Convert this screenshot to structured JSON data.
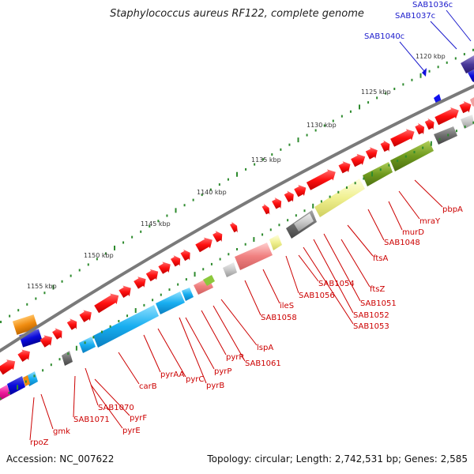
{
  "title": "Staphylococcus aureus RF122, complete genome",
  "accession": "Accession: NC_007622",
  "summary": "Topology: circular; Length: 2,742,531 bp; Genes: 2,585",
  "scale_labels": [
    "1120 kbp",
    "1125 kbp",
    "1130 kbp",
    "1135 kbp",
    "1140 kbp",
    "1145 kbp",
    "1150 kbp",
    "1155 kbp"
  ],
  "gene_labels_blue": [
    "SAB1036c",
    "SAB1037c",
    "SAB1040c"
  ],
  "gene_labels_red": [
    "pbpA",
    "mraY",
    "murD",
    "SAB1048",
    "ftsA",
    "ftsZ",
    "SAB1051",
    "SAB1052",
    "SAB1053",
    "SAB1054",
    "SAB1056",
    "ileS",
    "SAB1058",
    "lspA",
    "SAB1061",
    "pyrR",
    "pyrP",
    "pyrB",
    "pyrC",
    "pyrAA",
    "carB",
    "pyrF",
    "SAB1070",
    "pyrE",
    "SAB1071",
    "gmk",
    "rpoZ"
  ],
  "colors": {
    "backbone": "#808080",
    "tick_green": "#2e8b2e",
    "red_gene": "#ff1a1a",
    "cog_blue": "#1ab0ee",
    "cog_olive": "#6f9a1f",
    "cog_pink": "#f08080",
    "cog_yellow": "#f0f090",
    "cog_gray": "#6e6e6e"
  }
}
